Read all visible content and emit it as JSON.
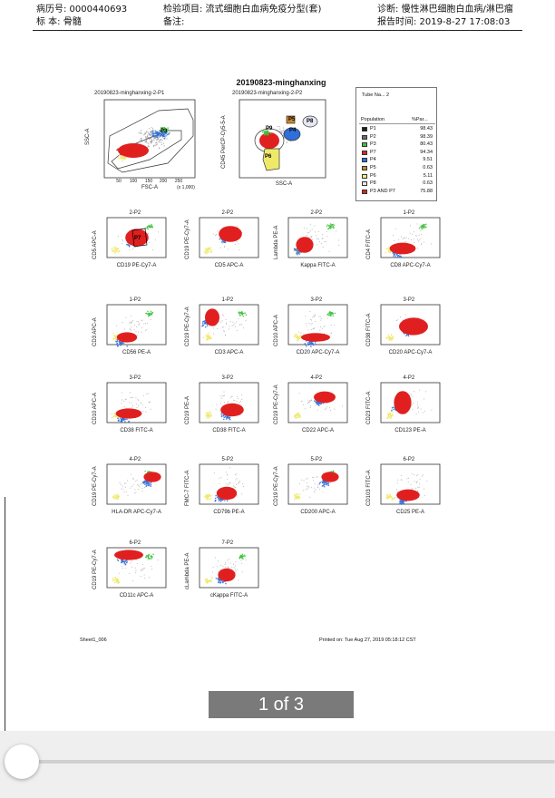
{
  "header": {
    "record_no": "病历号: 0000440693",
    "test_item": "检验项目: 流式细胞白血病免疫分型(套)",
    "diagnosis": "诊断: 慢性淋巴细胞白血病/淋巴瘤",
    "specimen": "标 本: 骨髓",
    "remark": "备注:",
    "report_time": "报告时间: 2019-8-27 17:08:03"
  },
  "report": {
    "title": "20190823-minghanxing",
    "sheet": "Sheet1_006",
    "printed": "Printed on: Tue Aug 27, 2019 05:18:12 CST"
  },
  "plot1": {
    "title": "20190823-minghanxing-2-P1",
    "xlabel": "FSC-A",
    "ylabel": "SSC-A",
    "xscale": "(x 1,000)",
    "xticks": [
      "50",
      "100",
      "150",
      "200",
      "250"
    ],
    "gate": "P3"
  },
  "plot2": {
    "title": "20190823-minghanxing-2-P2",
    "xlabel": "SSC-A",
    "ylabel": "CD45 PerCP-Cy5-5-A",
    "gates": [
      "P9",
      "P4",
      "P5",
      "P6",
      "P8"
    ]
  },
  "population_table": {
    "tube": "Tube Na... 2",
    "col1": "Population",
    "col2": "%Par...",
    "rows": [
      {
        "name": "P1",
        "value": "98.43",
        "color": "#202020"
      },
      {
        "name": "P2",
        "value": "98.39",
        "color": "#6a6a6a"
      },
      {
        "name": "P3",
        "value": "80.43",
        "color": "#3fc23f"
      },
      {
        "name": "P7",
        "value": "94.34",
        "color": "#e02020"
      },
      {
        "name": "P4",
        "value": "9.51",
        "color": "#2f6fd8"
      },
      {
        "name": "P5",
        "value": "0.63",
        "color": "#c8872a"
      },
      {
        "name": "P6",
        "value": "5.11",
        "color": "#f2ef7a"
      },
      {
        "name": "P8",
        "value": "0.63",
        "color": "#e7e7f4"
      },
      {
        "name": "P3 AND P7",
        "value": "75.88",
        "color": "#e02020"
      }
    ]
  },
  "grid_plots": [
    {
      "title": "2-P2",
      "xlabel": "CD19 PE-Cy7-A",
      "ylabel": "CD5 APC-A",
      "gate": "P7"
    },
    {
      "title": "2-P2",
      "xlabel": "CD5 APC-A",
      "ylabel": "CD19 PE-Cy7-A",
      "gate": ""
    },
    {
      "title": "2-P2",
      "xlabel": "Kappa FITC-A",
      "ylabel": "Lambda PE-A",
      "gate": ""
    },
    {
      "title": "1-P2",
      "xlabel": "CD8 APC-Cy7-A",
      "ylabel": "CD4 FITC-A",
      "gate": ""
    },
    {
      "title": "1-P2",
      "xlabel": "CD56 PE-A",
      "ylabel": "CD3 APC-A",
      "gate": ""
    },
    {
      "title": "1-P2",
      "xlabel": "CD3 APC-A",
      "ylabel": "CD19 PE-Cy7-A",
      "gate": ""
    },
    {
      "title": "3-P2",
      "xlabel": "CD20 APC-Cy7-A",
      "ylabel": "CD10 APC-A",
      "gate": ""
    },
    {
      "title": "3-P2",
      "xlabel": "CD20 APC-Cy7-A",
      "ylabel": "CD38 FITC-A",
      "gate": ""
    },
    {
      "title": "3-P2",
      "xlabel": "CD38 FITC-A",
      "ylabel": "CD10 APC-A",
      "gate": ""
    },
    {
      "title": "3-P2",
      "xlabel": "CD38 FITC-A",
      "ylabel": "CD19 PE-A",
      "gate": ""
    },
    {
      "title": "4-P2",
      "xlabel": "CD22 APC-A",
      "ylabel": "CD19 PE-Cy7-A",
      "gate": ""
    },
    {
      "title": "4-P2",
      "xlabel": "CD123 PE-A",
      "ylabel": "CD23 FITC-A",
      "gate": ""
    },
    {
      "title": "4-P2",
      "xlabel": "HLA-DR APC-Cy7-A",
      "ylabel": "CD19 PE-Cy7-A",
      "gate": ""
    },
    {
      "title": "5-P2",
      "xlabel": "CD79b PE-A",
      "ylabel": "FMC-7 FITC-A",
      "gate": ""
    },
    {
      "title": "5-P2",
      "xlabel": "CD200 APC-A",
      "ylabel": "CD19 PE-Cy7-A",
      "gate": ""
    },
    {
      "title": "6-P2",
      "xlabel": "CD25 PE-A",
      "ylabel": "CD103 FITC-A",
      "gate": ""
    },
    {
      "title": "6-P2",
      "xlabel": "CD11c APC-A",
      "ylabel": "CD19 PE-Cy7-A",
      "gate": ""
    },
    {
      "title": "7-P2",
      "xlabel": "cKappa FITC-A",
      "ylabel": "cLambda PE-A",
      "gate": ""
    }
  ],
  "viewer": {
    "page_indicator": "1 of 3"
  }
}
